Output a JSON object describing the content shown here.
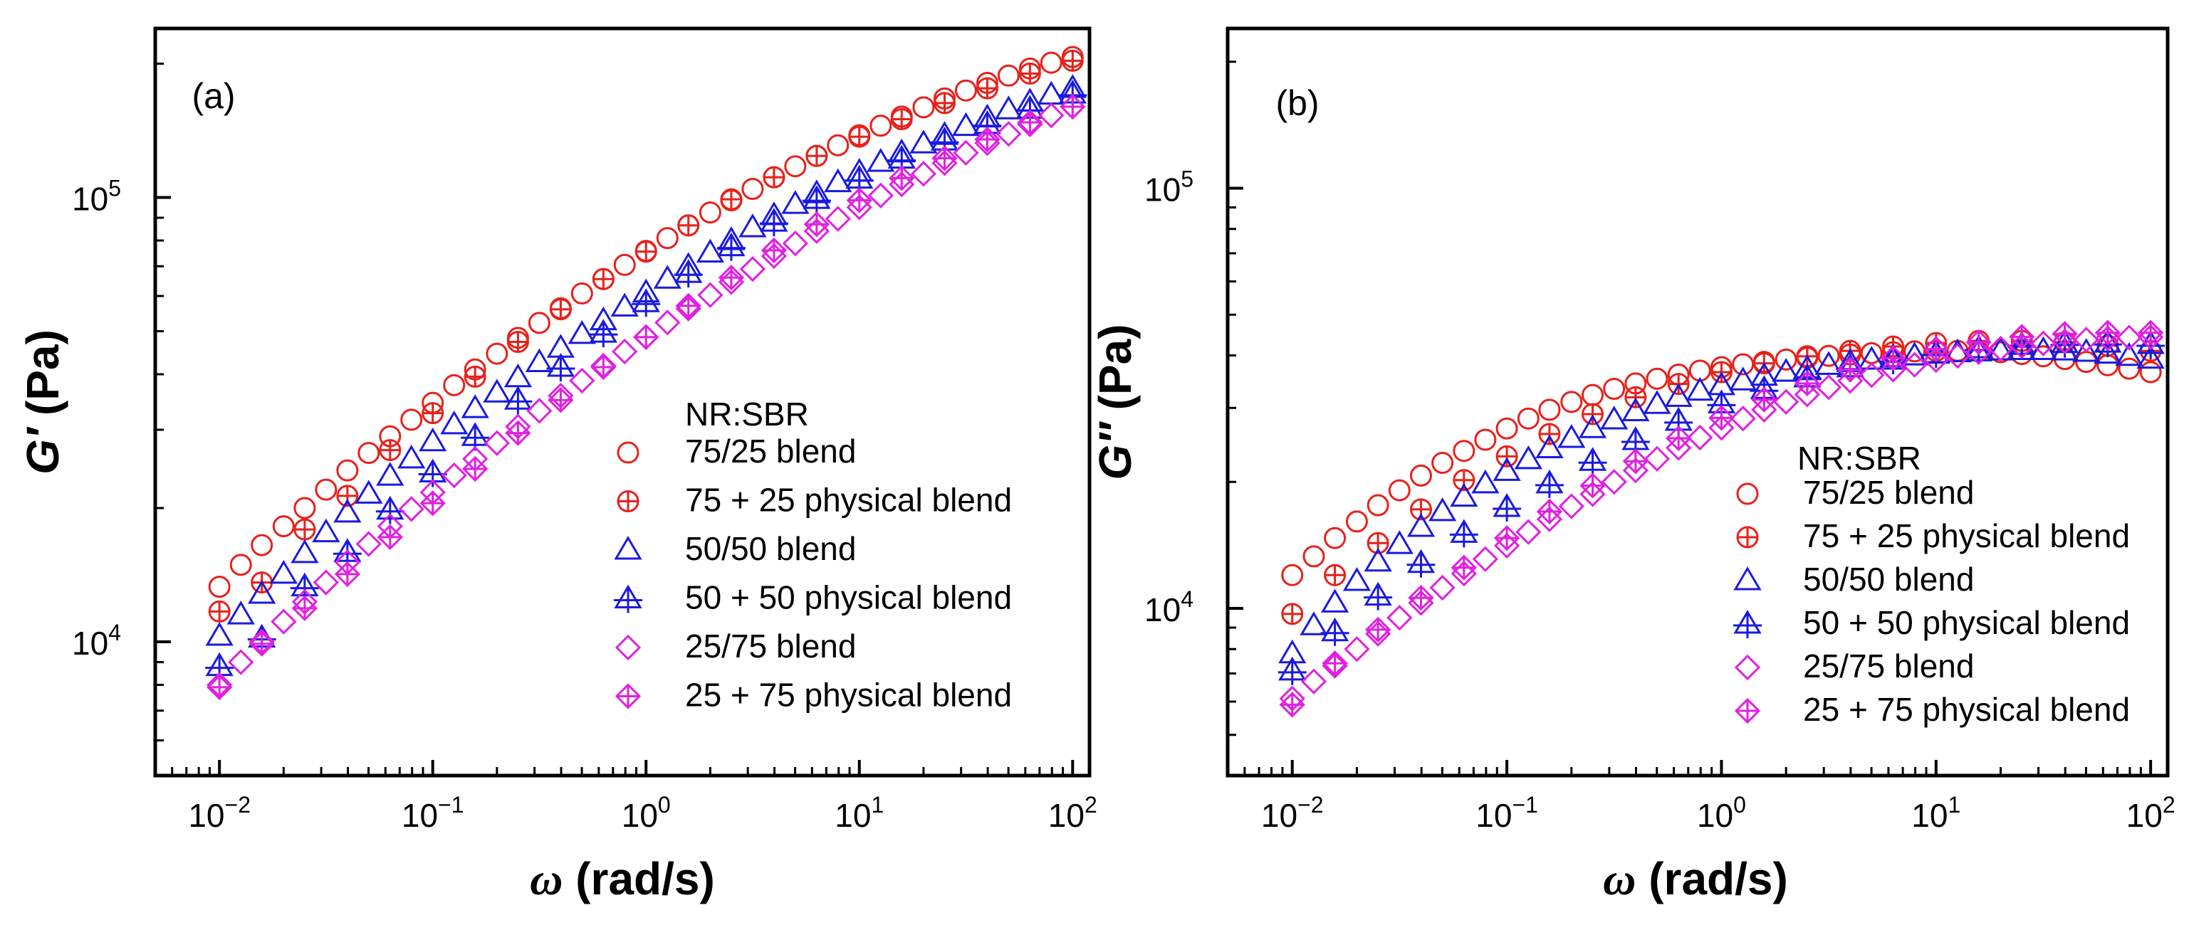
{
  "chart_data": [
    {
      "type": "scatter",
      "panel_label": "(a)",
      "xlabel_symbol": "ω",
      "xlabel_unit": " (rad/s)",
      "ylabel_symbol": "G′",
      "ylabel_unit": " (Pa)",
      "x_scale": "log",
      "y_scale": "log",
      "xlim": [
        0.005,
        120
      ],
      "ylim": [
        5000,
        240000
      ],
      "x_ticks": [
        0.01,
        0.1,
        1,
        10,
        100
      ],
      "x_tick_labels": [
        {
          "base": "10",
          "exp": "−2"
        },
        {
          "base": "10",
          "exp": "−1"
        },
        {
          "base": "10",
          "exp": "0"
        },
        {
          "base": "10",
          "exp": "1"
        },
        {
          "base": "10",
          "exp": "2"
        }
      ],
      "y_ticks": [
        10000,
        100000
      ],
      "y_tick_labels": [
        {
          "base": "10",
          "exp": "4"
        },
        {
          "base": "10",
          "exp": "5"
        }
      ],
      "legend": {
        "title": "NR:SBR",
        "position": "lower-right",
        "entries": [
          "75/25 blend",
          "75 + 25 physical blend",
          "50/50 blend",
          "50 + 50 physical blend",
          "25/75 blend",
          "25 + 75 physical blend"
        ]
      },
      "series": [
        {
          "name": "75/25 blend",
          "marker": "circle",
          "color": "#e8201a",
          "x": [
            0.01,
            0.0126,
            0.0158,
            0.02,
            0.0251,
            0.0316,
            0.0398,
            0.0501,
            0.0631,
            0.0794,
            0.1,
            0.126,
            0.158,
            0.2,
            0.251,
            0.316,
            0.398,
            0.501,
            0.631,
            0.794,
            1,
            1.26,
            1.58,
            2,
            2.51,
            3.16,
            3.98,
            5.01,
            6.31,
            7.94,
            10,
            12.6,
            15.8,
            20,
            25.1,
            31.6,
            39.8,
            50.1,
            63.1,
            79.4,
            100
          ],
          "y": [
            13300,
            14900,
            16500,
            18200,
            20000,
            22000,
            24300,
            26600,
            29000,
            31600,
            34500,
            37800,
            41000,
            44500,
            48300,
            52200,
            56300,
            60800,
            65500,
            70500,
            75800,
            81000,
            86500,
            92500,
            98500,
            104500,
            111000,
            117500,
            124000,
            131000,
            138000,
            145000,
            152000,
            159500,
            167000,
            174000,
            181000,
            188000,
            195000,
            201000,
            207000
          ]
        },
        {
          "name": "75 + 25 physical blend",
          "marker": "circle-plus",
          "color": "#e8201a",
          "x": [
            0.01,
            0.0158,
            0.0251,
            0.0398,
            0.0631,
            0.1,
            0.158,
            0.251,
            0.398,
            0.631,
            1,
            1.58,
            2.51,
            3.98,
            6.31,
            10,
            15.8,
            25.1,
            39.8,
            63.1,
            100
          ],
          "y": [
            11700,
            13600,
            17900,
            21300,
            27000,
            32700,
            39500,
            47300,
            56000,
            65500,
            75500,
            86500,
            99000,
            111000,
            124000,
            137000,
            150000,
            163000,
            176000,
            190000,
            203000
          ]
        },
        {
          "name": "50/50 blend",
          "marker": "triangle",
          "color": "#1a1ae0",
          "x": [
            0.01,
            0.0126,
            0.0158,
            0.02,
            0.0251,
            0.0316,
            0.0398,
            0.0501,
            0.0631,
            0.0794,
            0.1,
            0.126,
            0.158,
            0.2,
            0.251,
            0.316,
            0.398,
            0.501,
            0.631,
            0.794,
            1,
            1.26,
            1.58,
            2,
            2.51,
            3.16,
            3.98,
            5.01,
            6.31,
            7.94,
            10,
            12.6,
            15.8,
            20,
            25.1,
            31.6,
            39.8,
            50.1,
            63.1,
            79.4,
            100
          ],
          "y": [
            10300,
            11500,
            12800,
            14200,
            15800,
            17600,
            19500,
            21500,
            23600,
            25800,
            28200,
            30800,
            33500,
            36300,
            39300,
            42500,
            45800,
            49200,
            52800,
            56700,
            61000,
            65500,
            70000,
            75000,
            80000,
            85500,
            91000,
            96500,
            102000,
            108000,
            114000,
            120000,
            126000,
            132000,
            138000,
            144500,
            151000,
            157500,
            164000,
            170000,
            176000
          ]
        },
        {
          "name": "50 + 50 physical blend",
          "marker": "triangle-plus",
          "color": "#1a1ae0",
          "x": [
            0.01,
            0.0158,
            0.0251,
            0.0398,
            0.0631,
            0.1,
            0.158,
            0.251,
            0.398,
            0.631,
            1,
            1.58,
            2.51,
            3.98,
            6.31,
            10,
            15.8,
            25.1,
            39.8,
            63.1,
            100
          ],
          "y": [
            8800,
            10200,
            13300,
            15900,
            19800,
            24000,
            29000,
            35000,
            41500,
            49500,
            58000,
            67500,
            77500,
            88000,
            99000,
            110000,
            122000,
            134000,
            146000,
            158000,
            171000
          ]
        },
        {
          "name": "25/75 blend",
          "marker": "diamond",
          "color": "#e020e0",
          "x": [
            0.01,
            0.0126,
            0.0158,
            0.02,
            0.0251,
            0.0316,
            0.0398,
            0.0501,
            0.0631,
            0.0794,
            0.1,
            0.126,
            0.158,
            0.2,
            0.251,
            0.316,
            0.398,
            0.501,
            0.631,
            0.794,
            1,
            1.26,
            1.58,
            2,
            2.51,
            3.16,
            3.98,
            5.01,
            6.31,
            7.94,
            10,
            12.6,
            15.8,
            20,
            25.1,
            31.6,
            39.8,
            50.1,
            63.1,
            79.4,
            100
          ],
          "y": [
            8000,
            9000,
            10000,
            11100,
            12300,
            13600,
            15100,
            16600,
            18200,
            19900,
            21700,
            23700,
            25800,
            28000,
            30500,
            33100,
            35800,
            38700,
            41800,
            45000,
            48500,
            52300,
            56200,
            60300,
            64500,
            69000,
            73800,
            78800,
            84000,
            89500,
            95000,
            101000,
            107000,
            113000,
            119500,
            126000,
            132500,
            139000,
            146000,
            153000,
            160000
          ]
        },
        {
          "name": "25 + 75 physical blend",
          "marker": "diamond-plus",
          "color": "#e020e0",
          "x": [
            0.01,
            0.0158,
            0.0251,
            0.0398,
            0.0631,
            0.1,
            0.158,
            0.251,
            0.398,
            0.631,
            1,
            1.58,
            2.51,
            3.98,
            6.31,
            10,
            15.8,
            25.1,
            39.8,
            63.1,
            100
          ],
          "y": [
            7900,
            9900,
            11900,
            14200,
            17200,
            20500,
            24500,
            29500,
            35000,
            41500,
            48500,
            57000,
            66000,
            76000,
            87000,
            98500,
            110500,
            122500,
            135000,
            147500,
            160000
          ]
        }
      ]
    },
    {
      "type": "scatter",
      "panel_label": "(b)",
      "xlabel_symbol": "ω",
      "xlabel_unit": " (rad/s)",
      "ylabel_symbol": "G″",
      "ylabel_unit": " (Pa)",
      "x_scale": "log",
      "y_scale": "log",
      "xlim": [
        0.005,
        120
      ],
      "ylim": [
        4000,
        240000
      ],
      "x_ticks": [
        0.01,
        0.1,
        1,
        10,
        100
      ],
      "x_tick_labels": [
        {
          "base": "10",
          "exp": "−2"
        },
        {
          "base": "10",
          "exp": "−1"
        },
        {
          "base": "10",
          "exp": "0"
        },
        {
          "base": "10",
          "exp": "1"
        },
        {
          "base": "10",
          "exp": "2"
        }
      ],
      "y_ticks": [
        10000,
        100000
      ],
      "y_tick_labels": [
        {
          "base": "10",
          "exp": "4"
        },
        {
          "base": "10",
          "exp": "5"
        }
      ],
      "legend": {
        "title": "NR:SBR",
        "position": "lower-right",
        "entries": [
          "75/25 blend",
          "75 + 25 physical blend",
          "50/50 blend",
          "50 + 50 physical blend",
          "25/75 blend",
          "25 + 75 physical blend"
        ]
      },
      "series": [
        {
          "name": "75/25 blend",
          "marker": "circle",
          "color": "#e8201a",
          "x": [
            0.01,
            0.0126,
            0.0158,
            0.02,
            0.0251,
            0.0316,
            0.0398,
            0.0501,
            0.0631,
            0.0794,
            0.1,
            0.126,
            0.158,
            0.2,
            0.251,
            0.316,
            0.398,
            0.501,
            0.631,
            0.794,
            1,
            1.26,
            1.58,
            2,
            2.51,
            3.16,
            3.98,
            5.01,
            6.31,
            7.94,
            10,
            12.6,
            15.8,
            20,
            25.1,
            31.6,
            39.8,
            50.1,
            63.1,
            79.4,
            100
          ],
          "y": [
            12000,
            13300,
            14700,
            16100,
            17600,
            19100,
            20700,
            22200,
            23700,
            25200,
            26800,
            28300,
            29700,
            31000,
            32200,
            33300,
            34300,
            35200,
            36000,
            36800,
            37500,
            38100,
            38600,
            39100,
            39500,
            39900,
            40200,
            40500,
            40700,
            40900,
            41000,
            41000,
            40900,
            40700,
            40300,
            39800,
            39200,
            38600,
            37900,
            37200,
            36500
          ]
        },
        {
          "name": "75 + 25 physical blend",
          "marker": "circle-plus",
          "color": "#e8201a",
          "x": [
            0.01,
            0.0158,
            0.0251,
            0.0398,
            0.0631,
            0.1,
            0.158,
            0.251,
            0.398,
            0.631,
            1,
            1.58,
            2.51,
            3.98,
            6.31,
            10,
            15.8,
            25.1,
            39.8,
            63.1,
            100
          ],
          "y": [
            9700,
            12000,
            14300,
            17200,
            20200,
            23000,
            26000,
            29000,
            31800,
            34200,
            36500,
            38300,
            39800,
            41000,
            42000,
            42800,
            43300,
            43300,
            43000,
            42200,
            41000
          ]
        },
        {
          "name": "50/50 blend",
          "marker": "triangle",
          "color": "#1a1ae0",
          "x": [
            0.01,
            0.0126,
            0.0158,
            0.02,
            0.0251,
            0.0316,
            0.0398,
            0.0501,
            0.0631,
            0.0794,
            0.1,
            0.126,
            0.158,
            0.2,
            0.251,
            0.316,
            0.398,
            0.501,
            0.631,
            0.794,
            1,
            1.26,
            1.58,
            2,
            2.51,
            3.16,
            3.98,
            5.01,
            6.31,
            7.94,
            10,
            12.6,
            15.8,
            20,
            25.1,
            31.6,
            39.8,
            50.1,
            63.1,
            79.4,
            100
          ],
          "y": [
            7800,
            9100,
            10300,
            11600,
            12900,
            14200,
            15600,
            17000,
            18400,
            19800,
            21200,
            22600,
            24000,
            25400,
            26800,
            28100,
            29400,
            30600,
            31800,
            32900,
            33900,
            34800,
            35700,
            36500,
            37200,
            37900,
            38500,
            39000,
            39500,
            39900,
            40300,
            40600,
            40800,
            41000,
            41100,
            41100,
            41000,
            40700,
            40300,
            39800,
            39200
          ]
        },
        {
          "name": "50 + 50 physical blend",
          "marker": "triangle-plus",
          "color": "#1a1ae0",
          "x": [
            0.01,
            0.0158,
            0.0251,
            0.0398,
            0.0631,
            0.1,
            0.158,
            0.251,
            0.398,
            0.631,
            1,
            1.58,
            2.51,
            3.98,
            6.31,
            10,
            15.8,
            25.1,
            39.8,
            63.1,
            100
          ],
          "y": [
            7100,
            8800,
            10700,
            12800,
            15100,
            17400,
            19800,
            22400,
            25100,
            27900,
            30700,
            33200,
            35400,
            37400,
            39000,
            40400,
            41500,
            42300,
            42700,
            42800,
            42500
          ]
        },
        {
          "name": "25/75 blend",
          "marker": "diamond",
          "color": "#e020e0",
          "x": [
            0.01,
            0.0126,
            0.0158,
            0.02,
            0.0251,
            0.0316,
            0.0398,
            0.0501,
            0.0631,
            0.0794,
            0.1,
            0.126,
            0.158,
            0.2,
            0.251,
            0.316,
            0.398,
            0.501,
            0.631,
            0.794,
            1,
            1.26,
            1.58,
            2,
            2.51,
            3.16,
            3.98,
            5.01,
            6.31,
            7.94,
            10,
            12.6,
            15.8,
            20,
            25.1,
            31.6,
            39.8,
            50.1,
            63.1,
            79.4,
            100
          ],
          "y": [
            6100,
            6700,
            7300,
            8000,
            8700,
            9500,
            10300,
            11200,
            12100,
            13100,
            14100,
            15200,
            16300,
            17500,
            18700,
            20000,
            21300,
            22700,
            24100,
            25500,
            26900,
            28300,
            29700,
            31000,
            32300,
            33600,
            34800,
            35900,
            37000,
            38000,
            39000,
            39900,
            40700,
            41500,
            42100,
            42700,
            43200,
            43600,
            43900,
            44100,
            44200
          ]
        },
        {
          "name": "25 + 75 physical blend",
          "marker": "diamond-plus",
          "color": "#e020e0",
          "x": [
            0.01,
            0.0158,
            0.0251,
            0.0398,
            0.0631,
            0.1,
            0.158,
            0.251,
            0.398,
            0.631,
            1,
            1.58,
            2.51,
            3.98,
            6.31,
            10,
            15.8,
            25.1,
            39.8,
            63.1,
            100
          ],
          "y": [
            5900,
            7400,
            8900,
            10600,
            12500,
            14700,
            17000,
            19600,
            22400,
            25400,
            28400,
            31400,
            34300,
            37000,
            39400,
            41400,
            43000,
            44300,
            45000,
            45300,
            45300
          ]
        }
      ]
    }
  ]
}
